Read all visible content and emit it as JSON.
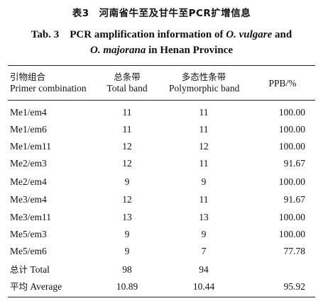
{
  "title": {
    "cn": "表3　河南省牛至及甘牛至PCR扩增信息",
    "en_prefix": "Tab. 3　PCR amplification information of ",
    "en_species1": "O. vulgare",
    "en_and": " and",
    "en_species2": "O. majorana",
    "en_suffix": " in Henan Province"
  },
  "table": {
    "headers": [
      {
        "cn": "引物组合",
        "en": "Primer combination"
      },
      {
        "cn": "总条带",
        "en": "Total band"
      },
      {
        "cn": "多态性条带",
        "en": "Polymorphic band"
      },
      {
        "cn": "",
        "en": "PPB/%"
      }
    ],
    "rows": [
      {
        "primer": "Me1/em4",
        "total": "11",
        "poly": "11",
        "ppb": "100.00"
      },
      {
        "primer": "Me1/em6",
        "total": "11",
        "poly": "11",
        "ppb": "100.00"
      },
      {
        "primer": "Me1/em11",
        "total": "12",
        "poly": "12",
        "ppb": "100.00"
      },
      {
        "primer": "Me2/em3",
        "total": "12",
        "poly": "11",
        "ppb": "91.67"
      },
      {
        "primer": "Me2/em4",
        "total": "9",
        "poly": "9",
        "ppb": "100.00"
      },
      {
        "primer": "Me3/em4",
        "total": "12",
        "poly": "11",
        "ppb": "91.67"
      },
      {
        "primer": "Me3/em11",
        "total": "13",
        "poly": "13",
        "ppb": "100.00"
      },
      {
        "primer": "Me5/em3",
        "total": "9",
        "poly": "9",
        "ppb": "100.00"
      },
      {
        "primer": "Me5/em6",
        "total": "9",
        "poly": "7",
        "ppb": "77.78"
      }
    ],
    "summary": [
      {
        "label_cn": "总计",
        "label_en": "Total",
        "total": "98",
        "poly": "94",
        "ppb": ""
      },
      {
        "label_cn": "平均",
        "label_en": "Average",
        "total": "10.89",
        "poly": "10.44",
        "ppb": "95.92"
      }
    ]
  }
}
